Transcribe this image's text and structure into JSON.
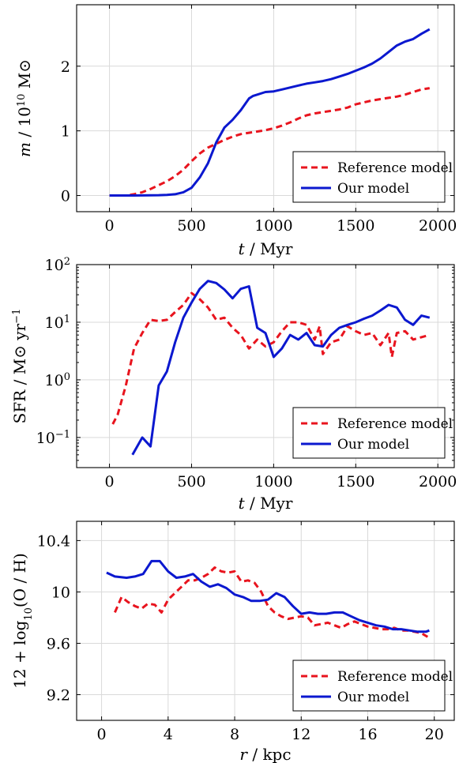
{
  "legend": {
    "reference": "Reference model",
    "ours": "Our model"
  },
  "colors": {
    "reference": "#e8141e",
    "ours": "#0b18cf"
  },
  "chart_data": [
    {
      "type": "line",
      "xlabel_var": "t",
      "xlabel_unit": "Myr",
      "ylabel_var": "m",
      "ylabel_unit": "10",
      "ylabel_exp": "10",
      "ylabel_sun": "M⊙",
      "xlim": [
        -200,
        2100
      ],
      "ylim": [
        -0.25,
        2.95
      ],
      "xticks": [
        0,
        500,
        1000,
        1500,
        2000
      ],
      "yticks": [
        0,
        1,
        2
      ],
      "legend_position": "bottom-right",
      "grid": true,
      "series": [
        {
          "name": "Reference model",
          "style": "dashed",
          "x": [
            0,
            100,
            150,
            200,
            250,
            300,
            350,
            400,
            450,
            500,
            550,
            600,
            650,
            700,
            750,
            800,
            850,
            900,
            950,
            1000,
            1050,
            1100,
            1150,
            1200,
            1250,
            1300,
            1350,
            1400,
            1450,
            1500,
            1550,
            1600,
            1650,
            1700,
            1750,
            1800,
            1850,
            1900,
            1950
          ],
          "y": [
            0,
            0,
            0.02,
            0.05,
            0.1,
            0.16,
            0.22,
            0.3,
            0.4,
            0.53,
            0.65,
            0.74,
            0.8,
            0.86,
            0.91,
            0.95,
            0.97,
            0.99,
            1.01,
            1.04,
            1.08,
            1.13,
            1.19,
            1.24,
            1.27,
            1.29,
            1.31,
            1.33,
            1.36,
            1.41,
            1.44,
            1.47,
            1.49,
            1.51,
            1.53,
            1.56,
            1.6,
            1.64,
            1.66
          ]
        },
        {
          "name": "Our model",
          "style": "solid",
          "x": [
            0,
            150,
            300,
            350,
            400,
            450,
            500,
            550,
            600,
            650,
            700,
            750,
            800,
            850,
            875,
            900,
            950,
            1000,
            1050,
            1100,
            1150,
            1200,
            1250,
            1300,
            1350,
            1400,
            1450,
            1500,
            1550,
            1600,
            1650,
            1700,
            1750,
            1800,
            1850,
            1900,
            1950
          ],
          "y": [
            0,
            0,
            0.005,
            0.01,
            0.02,
            0.05,
            0.12,
            0.28,
            0.5,
            0.82,
            1.05,
            1.17,
            1.32,
            1.5,
            1.54,
            1.56,
            1.6,
            1.61,
            1.64,
            1.67,
            1.7,
            1.73,
            1.75,
            1.77,
            1.8,
            1.84,
            1.88,
            1.93,
            1.98,
            2.04,
            2.12,
            2.22,
            2.32,
            2.38,
            2.42,
            2.5,
            2.57
          ]
        }
      ]
    },
    {
      "type": "line",
      "xlabel_var": "t",
      "xlabel_unit": "Myr",
      "ylabel_var": "SFR",
      "ylabel_unit": "M⊙",
      "ylabel_unit2": "yr",
      "ylabel_exp": "−1",
      "yscale": "log",
      "xlim": [
        -200,
        2100
      ],
      "ylim": [
        0.03,
        100
      ],
      "xticks": [
        0,
        500,
        1000,
        1500,
        2000
      ],
      "yticks": [
        0.1,
        1,
        10,
        100
      ],
      "ytick_exponents": [
        "−1",
        "0",
        "1",
        "2"
      ],
      "legend_position": "bottom-right",
      "grid": true,
      "series": [
        {
          "name": "Reference model",
          "style": "dashed",
          "x": [
            20,
            50,
            100,
            150,
            200,
            250,
            300,
            350,
            400,
            450,
            500,
            550,
            600,
            650,
            700,
            750,
            800,
            850,
            900,
            950,
            1000,
            1050,
            1100,
            1150,
            1200,
            1250,
            1280,
            1300,
            1350,
            1400,
            1450,
            1500,
            1550,
            1600,
            1650,
            1700,
            1720,
            1750,
            1800,
            1850,
            1900,
            1950
          ],
          "y": [
            0.17,
            0.25,
            0.8,
            3.5,
            6.5,
            11,
            10.5,
            11,
            15,
            20,
            32,
            25,
            18,
            11,
            12,
            8,
            6,
            3.5,
            5,
            3.8,
            4.5,
            7,
            10,
            10,
            9,
            5,
            8.5,
            2.8,
            4.5,
            5,
            8.5,
            7,
            6,
            6.5,
            4,
            6.5,
            2.5,
            6.5,
            7,
            5,
            5.5,
            6
          ]
        },
        {
          "name": "Our model",
          "style": "solid",
          "x": [
            140,
            200,
            250,
            300,
            350,
            400,
            450,
            500,
            550,
            600,
            650,
            700,
            750,
            800,
            850,
            900,
            950,
            1000,
            1050,
            1100,
            1150,
            1200,
            1250,
            1300,
            1350,
            1400,
            1450,
            1500,
            1550,
            1600,
            1650,
            1700,
            1750,
            1800,
            1850,
            1900,
            1950
          ],
          "y": [
            0.05,
            0.1,
            0.07,
            0.8,
            1.4,
            4.5,
            12,
            22,
            38,
            52,
            48,
            37,
            26,
            38,
            42,
            8,
            6.5,
            2.5,
            3.5,
            6,
            5,
            6.5,
            4,
            3.8,
            6,
            8,
            9,
            10,
            11.5,
            13,
            16,
            20,
            18,
            11,
            9,
            13,
            12
          ]
        }
      ]
    },
    {
      "type": "line",
      "xlabel_var": "r",
      "xlabel_unit": "kpc",
      "ylabel_text": "12 + log",
      "ylabel_sub": "10",
      "ylabel_rest": "(O / H)",
      "xlim": [
        -1.5,
        21.2
      ],
      "ylim": [
        9.0,
        10.55
      ],
      "xticks": [
        0,
        4,
        8,
        12,
        16,
        20
      ],
      "yticks": [
        9.2,
        9.6,
        10,
        10.4
      ],
      "ytick_labels": [
        "9.2",
        "9.6",
        "10",
        "10.4"
      ],
      "legend_position": "bottom-right",
      "grid": true,
      "series": [
        {
          "name": "Reference model",
          "style": "dashed",
          "x": [
            0.8,
            1.2,
            1.6,
            2.0,
            2.4,
            2.8,
            3.2,
            3.6,
            4.0,
            4.4,
            4.8,
            5.2,
            5.6,
            6.0,
            6.4,
            6.8,
            7.2,
            7.6,
            8.0,
            8.4,
            8.8,
            9.2,
            9.6,
            10.0,
            10.4,
            10.8,
            11.2,
            11.6,
            12.0,
            12.4,
            12.8,
            13.2,
            13.6,
            14.0,
            14.4,
            14.8,
            15.2,
            15.6,
            16.0,
            16.4,
            16.8,
            17.2,
            17.6,
            18.0,
            18.4,
            18.8,
            19.2,
            19.6
          ],
          "y": [
            9.84,
            9.96,
            9.92,
            9.89,
            9.87,
            9.91,
            9.9,
            9.84,
            9.94,
            9.99,
            10.04,
            10.09,
            10.09,
            10.11,
            10.14,
            10.19,
            10.16,
            10.15,
            10.16,
            10.08,
            10.09,
            10.07,
            10.0,
            9.89,
            9.84,
            9.81,
            9.79,
            9.8,
            9.81,
            9.8,
            9.74,
            9.75,
            9.76,
            9.74,
            9.72,
            9.75,
            9.77,
            9.75,
            9.73,
            9.72,
            9.71,
            9.71,
            9.72,
            9.7,
            9.7,
            9.69,
            9.68,
            9.65
          ]
        },
        {
          "name": "Our model",
          "style": "solid",
          "x": [
            0.3,
            0.8,
            1.5,
            2.0,
            2.5,
            3.0,
            3.5,
            4.0,
            4.5,
            5.0,
            5.5,
            6.0,
            6.5,
            7.0,
            7.5,
            8.0,
            8.5,
            9.0,
            9.5,
            10.0,
            10.5,
            11.0,
            11.5,
            12.0,
            12.5,
            13.0,
            13.5,
            14.0,
            14.5,
            15.0,
            15.5,
            16.0,
            16.5,
            17.0,
            17.5,
            18.0,
            18.5,
            19.0,
            19.5,
            19.7
          ],
          "y": [
            10.15,
            10.12,
            10.11,
            10.12,
            10.14,
            10.24,
            10.24,
            10.16,
            10.11,
            10.12,
            10.14,
            10.08,
            10.04,
            10.06,
            10.03,
            9.98,
            9.96,
            9.93,
            9.93,
            9.94,
            9.99,
            9.96,
            9.89,
            9.83,
            9.84,
            9.83,
            9.83,
            9.84,
            9.84,
            9.81,
            9.78,
            9.76,
            9.74,
            9.73,
            9.71,
            9.71,
            9.7,
            9.69,
            9.69,
            9.7
          ]
        }
      ]
    }
  ]
}
